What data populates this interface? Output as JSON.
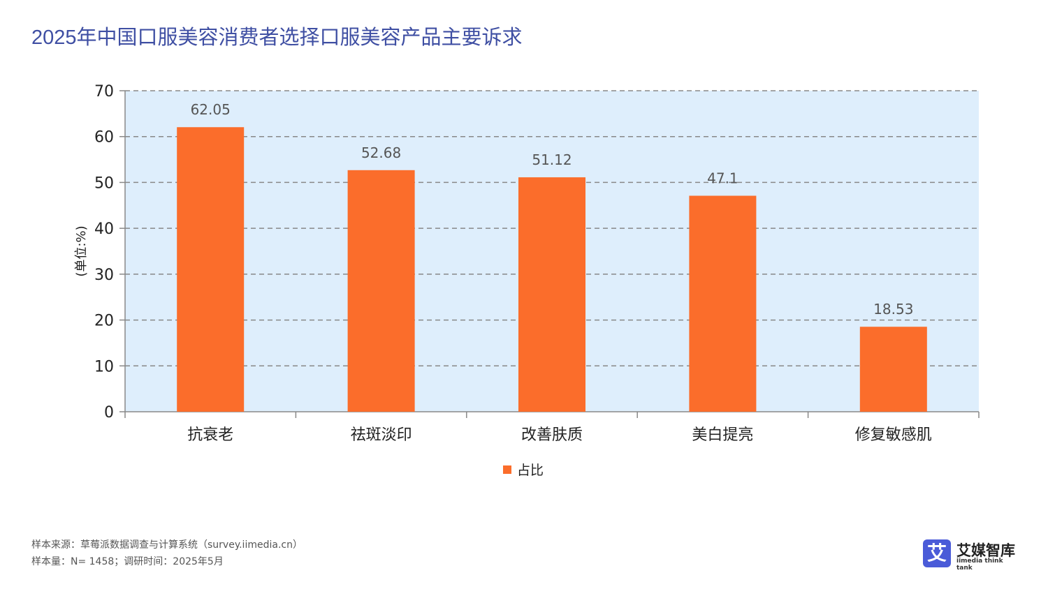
{
  "title": "2025年中国口服美容消费者选择口服美容产品主要诉求",
  "chart_data": {
    "type": "bar",
    "categories": [
      "抗衰老",
      "祛斑淡印",
      "改善肤质",
      "美白提亮",
      "修复敏感肌"
    ],
    "series": [
      {
        "name": "占比",
        "values": [
          62.05,
          52.68,
          51.12,
          47.1,
          18.53
        ],
        "labels": [
          "62.05",
          "52.68",
          "51.12",
          "47.1",
          "18.53"
        ],
        "color": "#fb6d2b"
      }
    ],
    "ylabel": "(单位:%)",
    "ylim": [
      0,
      70
    ],
    "yticks": [
      "0",
      "10",
      "20",
      "30",
      "40",
      "50",
      "60",
      "70"
    ],
    "grid": true,
    "plot_background": "#deeefc",
    "legend_position": "bottom"
  },
  "footer": {
    "source": "样本来源：草莓派数据调查与计算系统（survey.iimedia.cn）",
    "sample": "样本量：N= 1458；调研时间：2025年5月"
  },
  "logo": {
    "name": "艾媒智库",
    "sub": "iimedia think tank",
    "mark": "艾"
  }
}
